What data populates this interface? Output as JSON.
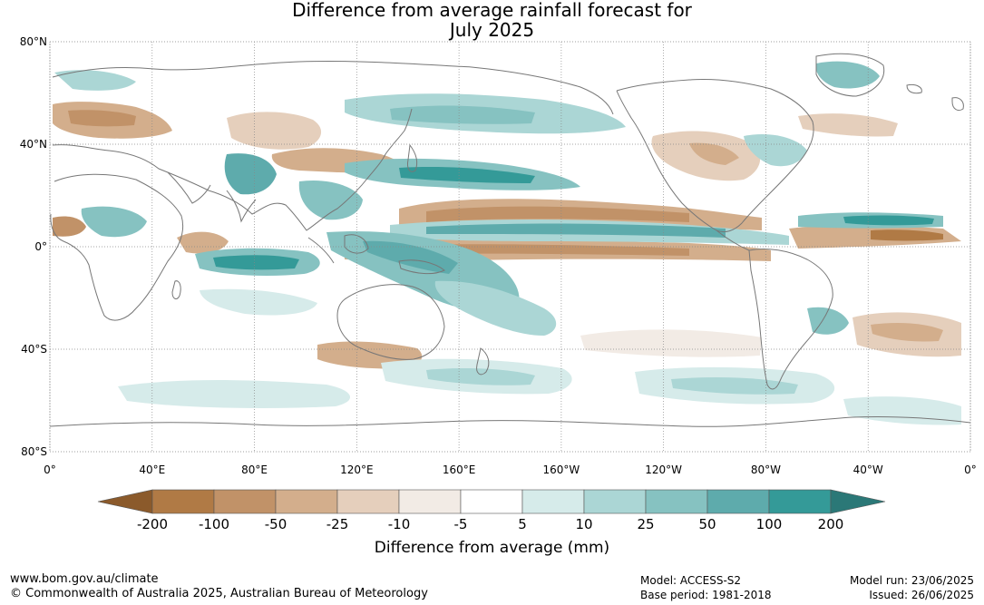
{
  "title": {
    "line1": "Difference from average rainfall forecast for",
    "line2": "July 2025"
  },
  "map": {
    "projection": "equirectangular",
    "center_longitude": "180",
    "lat_labels": [
      "80°N",
      "40°N",
      "0°",
      "40°S",
      "80°S"
    ],
    "lat_values": [
      80,
      40,
      0,
      -40,
      -80
    ],
    "lon_labels": [
      "0°",
      "40°E",
      "80°E",
      "120°E",
      "160°E",
      "160°W",
      "120°W",
      "80°W",
      "40°W",
      "0°"
    ],
    "lon_values": [
      0,
      40,
      80,
      120,
      160,
      200,
      240,
      280,
      320,
      360
    ],
    "gridlines": true
  },
  "legend": {
    "title": "Difference from average (mm)",
    "tick_labels": [
      "-200",
      "-100",
      "-50",
      "-25",
      "-10",
      "-5",
      "5",
      "10",
      "25",
      "50",
      "100",
      "200"
    ],
    "colors": [
      "#8b5a2b",
      "#b07a45",
      "#c19268",
      "#d3ae8c",
      "#e5cfbc",
      "#f2ebe5",
      "#ffffff",
      "#d6ebea",
      "#abd6d5",
      "#86c2c1",
      "#5eabac",
      "#349a98",
      "#2b7877"
    ]
  },
  "footer": {
    "website": "www.bom.gov.au/climate",
    "copyright": "© Commonwealth of Australia 2025, Australian Bureau of Meteorology",
    "model": "Model: ACCESS-S2",
    "base_period": "Base period: 1981-2018",
    "model_run": "Model run: 23/06/2025",
    "issued": "Issued: 26/06/2025"
  }
}
